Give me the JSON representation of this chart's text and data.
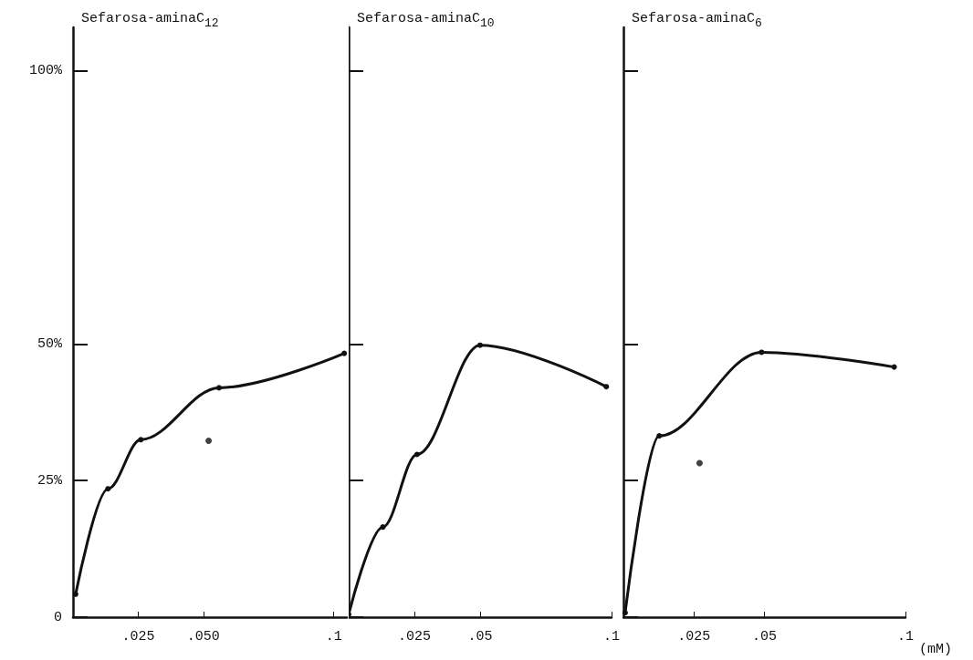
{
  "chart_data": [
    {
      "type": "line",
      "title": "Sefarosa-aminaC$_{12}$",
      "marker": "circle",
      "xlim": [
        0,
        0.105
      ],
      "xticks": [
        {
          "value": 0.025,
          "label": ".025"
        },
        {
          "value": 0.05,
          "label": ".050"
        },
        {
          "value": 0.1,
          "label": ".1"
        }
      ],
      "ylim": [
        0,
        108
      ],
      "yticks": [
        0,
        {
          "value": 25,
          "label": "25%"
        },
        {
          "value": 50,
          "label": "50%"
        },
        {
          "value": 100,
          "label": "100%"
        }
      ],
      "series": [
        {
          "color": "#111111",
          "x": [
            0.001,
            0.0134,
            0.026,
            0.056,
            0.104
          ],
          "values": [
            4.2,
            23.5,
            32.5,
            42,
            48.3
          ]
        },
        {
          "type": "scatter",
          "color": "#111111",
          "x": [
            0.052
          ],
          "values": [
            32.3
          ]
        }
      ]
    },
    {
      "type": "line",
      "title": "Sefarosa-aminaC$_{10}$",
      "marker": "circle",
      "tick_labels": "x",
      "xlim": [
        0,
        0.1
      ],
      "xticks": [
        {
          "value": 0.025,
          "label": ".025"
        },
        {
          "value": 0.05,
          "label": ".05"
        },
        {
          "value": 0.1,
          "label": ".1"
        }
      ],
      "ylim": [
        0,
        108
      ],
      "yticks": [
        {
          "value": 0,
          "label": null
        },
        {
          "value": 25,
          "label": null
        },
        {
          "value": 50,
          "label": null
        },
        {
          "value": 100,
          "label": null
        }
      ],
      "series": [
        {
          "color": "#111111",
          "x": [
            0,
            0.013,
            0.026,
            0.05,
            0.098
          ],
          "values": [
            0.5,
            16.5,
            29.8,
            49.8,
            42.2
          ]
        }
      ]
    },
    {
      "type": "line",
      "title": "Sefarosa-aminaC$_{6}$",
      "xlabel": "(mM)",
      "marker": "circle",
      "tick_labels": "x",
      "xlim": [
        0,
        0.1
      ],
      "xticks": [
        {
          "value": 0.025,
          "label": ".025"
        },
        {
          "value": 0.05,
          "label": ".05"
        },
        {
          "value": 0.1,
          "label": ".1"
        }
      ],
      "ylim": [
        0,
        108
      ],
      "yticks": [
        {
          "value": 0,
          "label": null
        },
        {
          "value": 25,
          "label": null
        },
        {
          "value": 50,
          "label": null
        },
        {
          "value": 100,
          "label": null
        }
      ],
      "series": [
        {
          "color": "#111111",
          "x": [
            0.0006,
            0.0127,
            0.049,
            0.096
          ],
          "values": [
            0.8,
            33.2,
            48.5,
            45.8
          ]
        },
        {
          "type": "scatter",
          "color": "#111111",
          "x": [
            0.027
          ],
          "values": [
            28.2
          ]
        }
      ]
    }
  ]
}
